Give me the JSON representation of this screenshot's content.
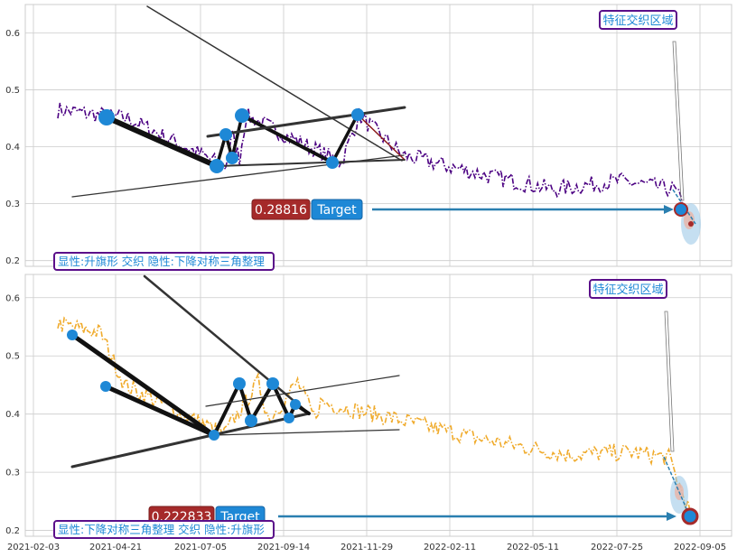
{
  "chart_data": [
    {
      "type": "line",
      "series": [
        {
          "values": []
        }
      ],
      "x_start": "2021-02-03",
      "x_end": "2022-09-05",
      "ylim": [
        0.19,
        0.65
      ],
      "yticks": [
        "0.2",
        "0.3",
        "0.4",
        "0.5",
        "0.6"
      ],
      "line_color": "#4b0082",
      "line_style": "dash-dot",
      "keypoints": [
        [
          "2021-04-08",
          0.45
        ],
        [
          "2021-07-06",
          0.365
        ],
        [
          "2021-07-12",
          0.42
        ],
        [
          "2021-07-19",
          0.38
        ],
        [
          "2021-07-25",
          0.455
        ],
        [
          "2021-10-20",
          0.372
        ],
        [
          "2021-11-05",
          0.455
        ]
      ],
      "target_value": "0.28816",
      "target_label": "Target",
      "region_label": "特征交织区域",
      "pattern_label": "显性:升旗形 交织 隐性:下降对称三角整理",
      "target_point": [
        "2022-08-30",
        0.29
      ]
    },
    {
      "type": "line",
      "series": [
        {
          "values": []
        }
      ],
      "x_start": "2021-02-03",
      "x_end": "2022-09-05",
      "ylim": [
        0.19,
        0.64
      ],
      "yticks": [
        "0.2",
        "0.3",
        "0.4",
        "0.5",
        "0.6"
      ],
      "line_color": "#f0ab2c",
      "line_style": "dash-dot",
      "keypoints": [
        [
          "2021-03-14",
          0.54
        ],
        [
          "2021-04-05",
          0.45
        ],
        [
          "2021-07-05",
          0.365
        ],
        [
          "2021-08-05",
          0.455
        ],
        [
          "2021-08-15",
          0.39
        ],
        [
          "2021-09-10",
          0.455
        ],
        [
          "2021-09-25",
          0.395
        ],
        [
          "2021-10-01",
          0.42
        ]
      ],
      "target_value": "0.222833",
      "target_label": "Target",
      "region_label": "特征交织区域",
      "pattern_label": "显性:下降对称三角整理 交织 隐性:升旗形",
      "target_point": [
        "2022-09-05",
        0.222
      ]
    }
  ],
  "x_ticks": [
    "2021-02-03",
    "2021-04-21",
    "2021-07-05",
    "2021-09-14",
    "2021-11-29",
    "2022-02-11",
    "2022-05-11",
    "2022-07-25",
    "2022-09-05"
  ],
  "colors": {
    "grid": "#cccccc",
    "marker": "#1e88d6",
    "target_red": "#a52a2a",
    "target_blue": "#1e88d6",
    "label_border": "#5b0f8a",
    "label_text": "#1e88d6",
    "arrow": "#2a7fb0"
  }
}
